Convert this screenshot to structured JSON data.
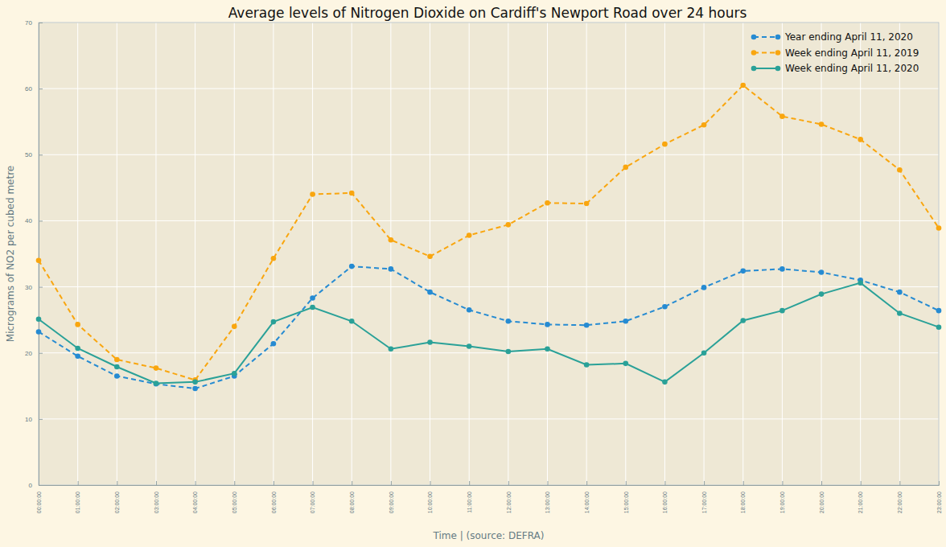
{
  "chart_data": {
    "type": "line",
    "title": "Average levels of Nitrogen Dioxide on Cardiff's Newport Road over 24 hours",
    "x_label": "Time | (source: DEFRA)",
    "y_label": "Micrograms of NO2 per cubed metre",
    "categories": [
      "00:00:00",
      "01:00:00",
      "02:00:00",
      "03:00:00",
      "04:00:00",
      "05:00:00",
      "06:00:00",
      "07:00:00",
      "08:00:00",
      "09:00:00",
      "10:00:00",
      "11:00:00",
      "12:00:00",
      "13:00:00",
      "14:00:00",
      "15:00:00",
      "16:00:00",
      "17:00:00",
      "18:00:00",
      "19:00:00",
      "20:00:00",
      "21:00:00",
      "22:00:00",
      "23:00:00"
    ],
    "series": [
      {
        "name": "Year ending April 11, 2020",
        "color": "#268bd2",
        "line_style": "dashed",
        "marker": "circle",
        "values": [
          23.2,
          19.5,
          16.5,
          15.3,
          14.6,
          16.5,
          21.4,
          28.3,
          33.1,
          32.7,
          29.2,
          26.5,
          24.8,
          24.3,
          24.2,
          24.8,
          27.0,
          29.9,
          32.4,
          32.7,
          32.2,
          31.0,
          29.2,
          26.4
        ]
      },
      {
        "name": "Week ending April 11, 2019",
        "color": "#f9a60f",
        "line_style": "dashed",
        "marker": "circle",
        "values": [
          34.0,
          24.3,
          19.0,
          17.7,
          15.9,
          24.0,
          34.3,
          44.0,
          44.2,
          37.1,
          34.6,
          37.8,
          39.4,
          42.7,
          42.6,
          48.1,
          51.6,
          54.5,
          60.5,
          55.8,
          54.6,
          52.3,
          47.7,
          38.9
        ]
      },
      {
        "name": "Week ending April 11, 2020",
        "color": "#2aa198",
        "line_style": "solid",
        "marker": "circle",
        "values": [
          25.1,
          20.7,
          17.9,
          15.4,
          15.6,
          16.9,
          24.7,
          26.9,
          24.8,
          20.6,
          21.6,
          21.0,
          20.2,
          20.6,
          18.2,
          18.4,
          15.6,
          20.0,
          24.9,
          26.4,
          28.9,
          30.6,
          26.0,
          23.9
        ]
      }
    ],
    "ylim": [
      0,
      70
    ],
    "yticks": [
      0,
      10,
      20,
      30,
      40,
      50,
      60,
      70
    ],
    "grid": true,
    "legend": "upper right"
  }
}
